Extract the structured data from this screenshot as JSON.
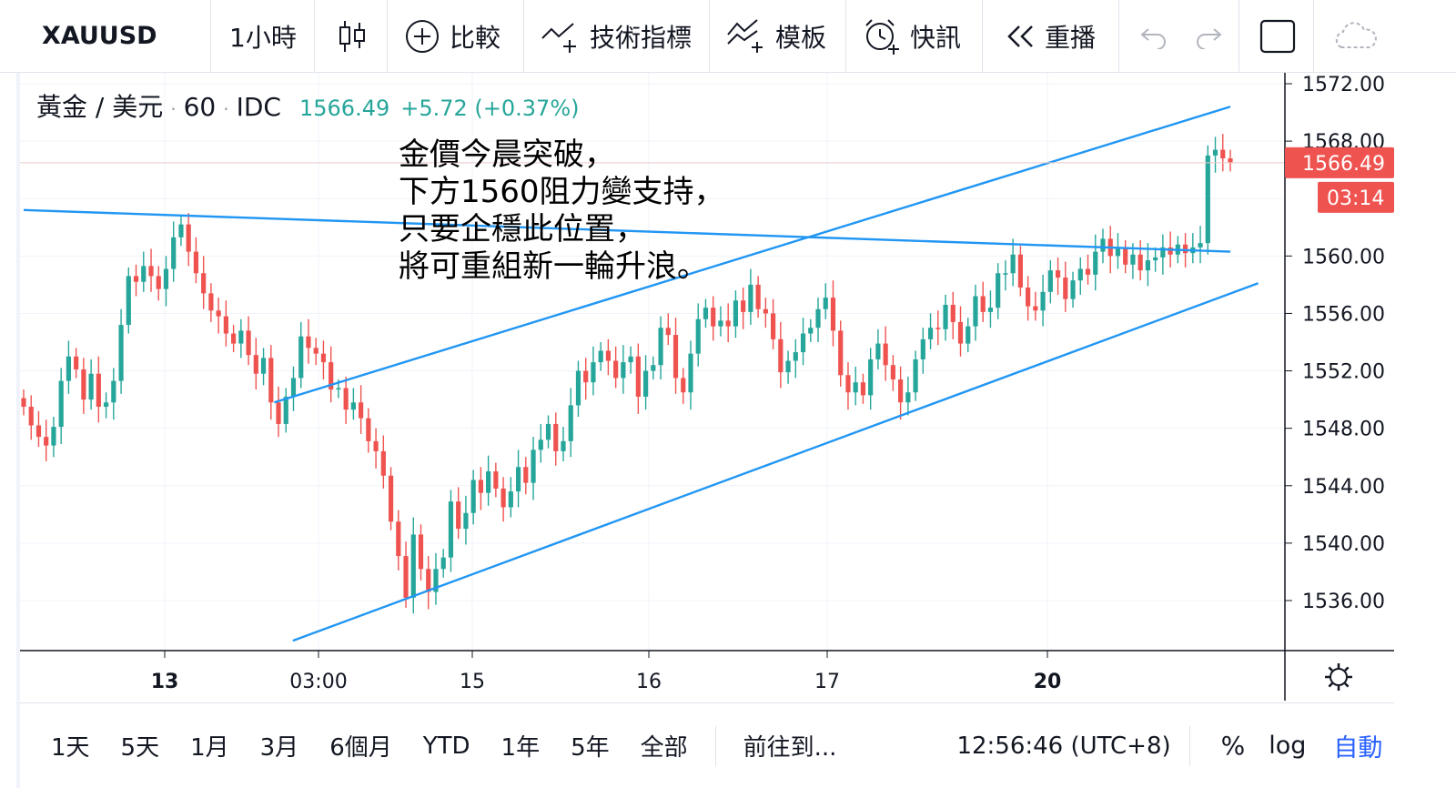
{
  "toolbar": {
    "symbol": "XAUUSD",
    "interval": "1小時",
    "compare_label": "比較",
    "indicators_label": "技術指標",
    "templates_label": "模板",
    "alerts_label": "快訊",
    "replay_label": "重播"
  },
  "legend": {
    "name": "黃金 / 美元",
    "interval": "60",
    "source": "IDC",
    "price": "1566.49",
    "change": "+5.72 (+0.37%)",
    "up_color": "#26a69a",
    "down_color": "#ef5350"
  },
  "annotation": {
    "lines": [
      "金價今晨突破，",
      "下方1560阻力變支持，",
      "只要企穩此位置，",
      "將可重組新一輪升浪。"
    ]
  },
  "price_axis": {
    "ticks": [
      "1572.00",
      "1568.00",
      "1560.00",
      "1556.00",
      "1552.00",
      "1548.00",
      "1544.00",
      "1540.00",
      "1536.00"
    ],
    "last_price": "1566.49",
    "countdown": "03:14"
  },
  "time_axis": {
    "labels": [
      "13",
      "03:00",
      "15",
      "16",
      "17",
      "20"
    ]
  },
  "chart_data": {
    "type": "candlestick",
    "ylim": [
      1532,
      1574
    ],
    "last_price": 1566.49,
    "trendlines": [
      {
        "name": "",
        "from": [
          0,
          1563.2
        ],
        "to": [
          1300,
          1560.3
        ]
      },
      {
        "name": "",
        "from": [
          270,
          1549.8
        ],
        "to": [
          1300,
          1570.4
        ]
      },
      {
        "name": "",
        "from": [
          290,
          1533.2
        ],
        "to": [
          1330,
          1558.1
        ]
      }
    ],
    "closes": [
      1549.5,
      1548.2,
      1547.4,
      1546.8,
      1548.1,
      1551.3,
      1553.0,
      1552.1,
      1550.0,
      1551.8,
      1549.5,
      1549.8,
      1551.3,
      1555.2,
      1558.6,
      1558.2,
      1559.3,
      1558.6,
      1557.7,
      1559.1,
      1561.3,
      1562.2,
      1560.3,
      1558.8,
      1557.4,
      1556.2,
      1555.8,
      1554.6,
      1553.9,
      1554.8,
      1553.1,
      1551.8,
      1552.9,
      1549.8,
      1548.3,
      1550.2,
      1551.5,
      1554.4,
      1553.6,
      1553.2,
      1552.6,
      1550.7,
      1550.8,
      1549.3,
      1549.8,
      1548.7,
      1547.1,
      1546.4,
      1544.7,
      1541.5,
      1539.1,
      1536.2,
      1540.6,
      1538.2,
      1536.6,
      1538.2,
      1539.0,
      1542.9,
      1541.0,
      1542.1,
      1544.4,
      1543.5,
      1545.0,
      1543.8,
      1542.5,
      1543.6,
      1545.3,
      1544.2,
      1546.5,
      1547.2,
      1548.3,
      1546.4,
      1547.1,
      1549.6,
      1552.0,
      1551.2,
      1552.6,
      1553.4,
      1552.7,
      1551.5,
      1552.6,
      1553.0,
      1550.2,
      1552.0,
      1552.4,
      1555.0,
      1554.5,
      1551.5,
      1550.5,
      1553.2,
      1555.6,
      1556.4,
      1555.1,
      1555.5,
      1555.1,
      1556.9,
      1556.1,
      1558.0,
      1556.3,
      1556.0,
      1554.2,
      1551.9,
      1552.7,
      1553.3,
      1554.6,
      1555.0,
      1556.3,
      1557.1,
      1554.8,
      1551.7,
      1550.5,
      1551.2,
      1550.3,
      1552.8,
      1553.9,
      1552.4,
      1551.4,
      1549.8,
      1550.5,
      1552.8,
      1554.2,
      1555.0,
      1554.9,
      1556.6,
      1555.4,
      1553.9,
      1555.1,
      1557.2,
      1556.1,
      1556.4,
      1558.8,
      1558.8,
      1560.1,
      1557.8,
      1556.5,
      1556.2,
      1557.5,
      1559.0,
      1558.5,
      1557.0,
      1558.3,
      1559.1,
      1558.7,
      1560.3,
      1561.2,
      1560.0,
      1560.5,
      1559.4,
      1560.1,
      1559.0,
      1559.7,
      1559.9,
      1560.6,
      1560.1,
      1560.8,
      1560.2,
      1560.6,
      1560.9,
      1567.0,
      1567.4,
      1566.8,
      1566.49
    ]
  }
}
